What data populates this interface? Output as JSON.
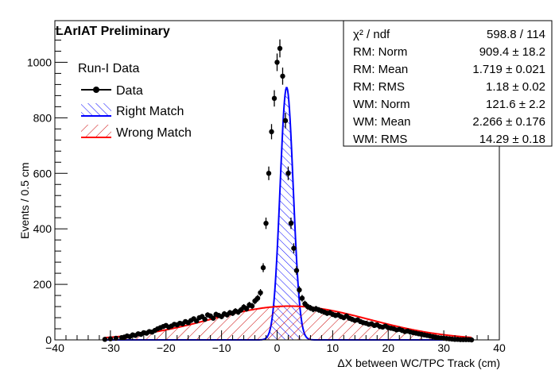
{
  "chart_data": {
    "type": "histogram",
    "title": "LArIAT Preliminary",
    "xlabel": "ΔX between WC/TPC Track (cm)",
    "ylabel": "Events / 0.5 cm",
    "xlim": [
      -40,
      40
    ],
    "ylim": [
      0,
      1150
    ],
    "xticks": [
      -40,
      -30,
      -20,
      -10,
      0,
      10,
      20,
      30,
      40
    ],
    "yticks": [
      0,
      200,
      400,
      600,
      800,
      1000
    ],
    "grid": false,
    "legend": {
      "placement": "top-left",
      "header": "Run-I Data",
      "entries": [
        {
          "label": "Data",
          "style": "points",
          "color": "#000000"
        },
        {
          "label": "Right Match",
          "style": "hatched",
          "color": "#0000ff"
        },
        {
          "label": "Wrong Match",
          "style": "hatched",
          "color": "#ff0000"
        }
      ]
    },
    "stats_box": {
      "placement": "top-right",
      "rows": [
        {
          "label": "χ² / ndf",
          "value": "598.8 / 114"
        },
        {
          "label": "RM: Norm",
          "value": "909.4 ± 18.2"
        },
        {
          "label": "RM: Mean",
          "value": "1.719 ± 0.021"
        },
        {
          "label": "RM: RMS",
          "value": "1.18 ± 0.02"
        },
        {
          "label": "WM: Norm",
          "value": "121.6 ± 2.2"
        },
        {
          "label": "WM: Mean",
          "value": "2.266 ± 0.176"
        },
        {
          "label": "WM: RMS",
          "value": "14.29 ± 0.18"
        }
      ]
    },
    "series": [
      {
        "name": "Data",
        "style": "points-with-errors",
        "x": [
          -31.0,
          -30.0,
          -29.0,
          -28.0,
          -27.5,
          -27.0,
          -26.5,
          -26.0,
          -25.5,
          -25.0,
          -24.5,
          -24.0,
          -23.5,
          -23.0,
          -22.5,
          -22.0,
          -21.5,
          -21.0,
          -20.5,
          -20.0,
          -19.5,
          -19.0,
          -18.5,
          -18.0,
          -17.5,
          -17.0,
          -16.5,
          -16.0,
          -15.5,
          -15.0,
          -14.5,
          -14.0,
          -13.5,
          -13.0,
          -12.5,
          -12.0,
          -11.5,
          -11.0,
          -10.5,
          -10.0,
          -9.5,
          -9.0,
          -8.5,
          -8.0,
          -7.5,
          -7.0,
          -6.5,
          -6.0,
          -5.5,
          -5.0,
          -4.5,
          -4.0,
          -3.5,
          -3.0,
          -2.5,
          -2.0,
          -1.5,
          -1.0,
          -0.5,
          0.0,
          0.5,
          1.0,
          1.5,
          2.0,
          2.5,
          3.0,
          3.5,
          4.0,
          4.5,
          5.0,
          5.5,
          6.0,
          6.5,
          7.0,
          7.5,
          8.0,
          8.5,
          9.0,
          9.5,
          10.0,
          10.5,
          11.0,
          11.5,
          12.0,
          12.5,
          13.0,
          13.5,
          14.0,
          14.5,
          15.0,
          15.5,
          16.0,
          16.5,
          17.0,
          17.5,
          18.0,
          18.5,
          19.0,
          19.5,
          20.0,
          20.5,
          21.0,
          21.5,
          22.0,
          22.5,
          23.0,
          23.5,
          24.0,
          24.5,
          25.0,
          25.5,
          26.0,
          26.5,
          27.0,
          27.5,
          28.0,
          28.5,
          29.0,
          29.5,
          30.0,
          30.5,
          31.0,
          31.5,
          32.0,
          32.5,
          33.0,
          33.5,
          34.0,
          34.5,
          35.0
        ],
        "y": [
          2,
          4,
          6,
          8,
          10,
          14,
          12,
          18,
          16,
          22,
          20,
          26,
          24,
          30,
          28,
          34,
          40,
          44,
          48,
          52,
          46,
          50,
          56,
          54,
          60,
          58,
          66,
          62,
          70,
          76,
          68,
          80,
          84,
          74,
          90,
          86,
          78,
          92,
          88,
          84,
          94,
          90,
          98,
          96,
          104,
          100,
          108,
          118,
          112,
          126,
          122,
          140,
          150,
          170,
          260,
          420,
          600,
          750,
          870,
          1000,
          1050,
          950,
          790,
          600,
          420,
          330,
          250,
          180,
          150,
          130,
          120,
          115,
          110,
          112,
          108,
          104,
          100,
          96,
          98,
          92,
          88,
          90,
          84,
          80,
          86,
          78,
          74,
          70,
          72,
          66,
          62,
          60,
          56,
          58,
          52,
          54,
          48,
          46,
          50,
          44,
          42,
          40,
          36,
          38,
          34,
          30,
          32,
          28,
          26,
          24,
          22,
          20,
          18,
          16,
          14,
          12,
          10,
          8,
          7,
          6,
          5,
          4,
          3,
          2,
          2,
          1,
          1,
          1,
          1,
          0
        ],
        "yerr": [
          1.4,
          2,
          2.4,
          2.8,
          3.2,
          3.7,
          3.5,
          4.2,
          4,
          4.7,
          4.5,
          5.1,
          4.9,
          5.5,
          5.3,
          5.8,
          6.3,
          6.6,
          6.9,
          7.2,
          6.8,
          7.1,
          7.5,
          7.3,
          7.7,
          7.6,
          8.1,
          7.9,
          8.4,
          8.7,
          8.2,
          8.9,
          9.2,
          8.6,
          9.5,
          9.3,
          8.8,
          9.6,
          9.4,
          9.2,
          9.7,
          9.5,
          9.9,
          9.8,
          10.2,
          10,
          10.4,
          10.9,
          10.6,
          11.2,
          11,
          11.8,
          12.2,
          13,
          16.1,
          20.5,
          24.5,
          27.4,
          29.5,
          31.6,
          32.4,
          30.8,
          28.1,
          24.5,
          20.5,
          18.2,
          15.8,
          13.4,
          12.2,
          11.4,
          11,
          10.7,
          10.5,
          10.6,
          10.4,
          10.2,
          10,
          9.8,
          9.9,
          9.6,
          9.4,
          9.5,
          9.2,
          8.9,
          9.3,
          8.8,
          8.6,
          8.4,
          8.5,
          8.1,
          7.9,
          7.7,
          7.5,
          7.6,
          7.2,
          7.3,
          6.9,
          6.8,
          7.1,
          6.6,
          6.5,
          6.3,
          6,
          6.2,
          5.8,
          5.5,
          5.7,
          5.3,
          5.1,
          4.9,
          4.7,
          4.5,
          4.2,
          4,
          3.7,
          3.5,
          3.2,
          2.8,
          2.6,
          2.4,
          2.2,
          2,
          1.7,
          1.4,
          1.4,
          1,
          1,
          1,
          1,
          0
        ]
      },
      {
        "name": "Right Match",
        "style": "hatched-area",
        "color": "#0000ff",
        "function": "gaussian",
        "norm": 909.4,
        "mean": 1.719,
        "rms": 1.18
      },
      {
        "name": "Wrong Match",
        "style": "hatched-area",
        "color": "#ff0000",
        "function": "gaussian",
        "norm": 121.6,
        "mean": 2.266,
        "rms": 14.29
      }
    ]
  }
}
